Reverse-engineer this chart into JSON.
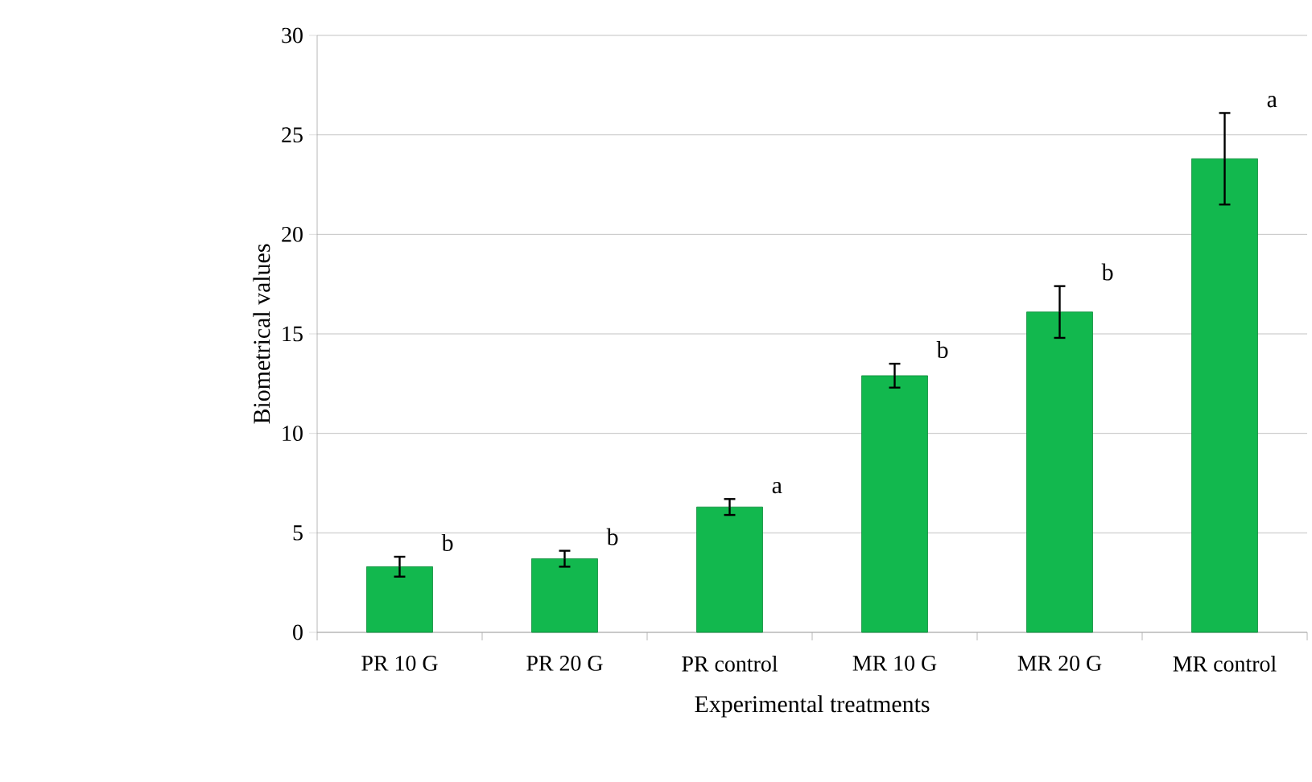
{
  "chart_data": {
    "type": "bar",
    "xlabel": "Experimental treatments",
    "ylabel": "Biometrical values",
    "categories": [
      "PR 10 G",
      "PR 20 G",
      "PR control",
      "MR 10 G",
      "MR 20 G",
      "MR control"
    ],
    "values": [
      3.3,
      3.7,
      6.3,
      12.9,
      16.1,
      23.8
    ],
    "errors": [
      0.5,
      0.4,
      0.4,
      0.6,
      1.3,
      2.3
    ],
    "color": "#12b84e",
    "ylim": [
      0,
      30
    ],
    "yticks": [
      0,
      5,
      10,
      15,
      20,
      25,
      30
    ],
    "grid": "y",
    "annotations": [
      "b",
      "b",
      "a",
      "b",
      "b",
      "a"
    ]
  }
}
